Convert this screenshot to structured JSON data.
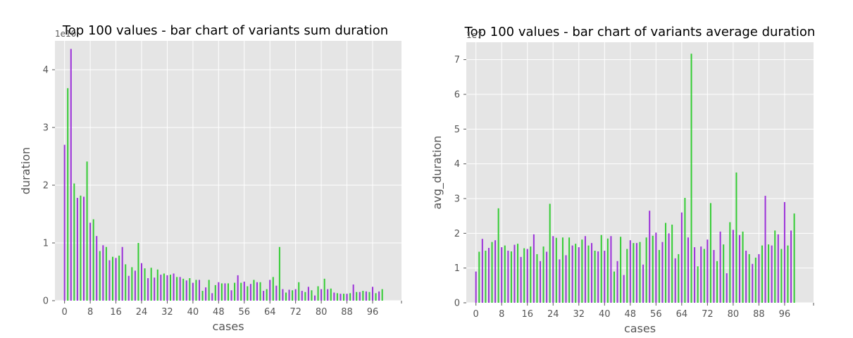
{
  "colors": {
    "background": "#ffffff",
    "plot_background": "#e5e5e5",
    "grid": "#ffffff",
    "bar_purple": "#9b30d9",
    "bar_green": "#33cc33",
    "text": "#555555"
  },
  "chart_data": [
    {
      "type": "bar",
      "title": "Top 100 values - bar chart of variants sum duration",
      "xlabel": "cases",
      "ylabel": "duration",
      "offset_text": "1e10",
      "grid": true,
      "xlim": [
        -3,
        105
      ],
      "ylim": [
        0,
        4.5
      ],
      "xticks": [
        0,
        8,
        16,
        24,
        32,
        40,
        48,
        56,
        64,
        72,
        80,
        88,
        96
      ],
      "yticks": [
        0,
        1,
        2,
        3,
        4
      ],
      "bar_colors_alternate": [
        "#9b30d9",
        "#33cc33"
      ],
      "x": [
        0,
        1,
        2,
        3,
        4,
        5,
        6,
        7,
        8,
        9,
        10,
        11,
        12,
        13,
        14,
        15,
        16,
        17,
        18,
        19,
        20,
        21,
        22,
        23,
        24,
        25,
        26,
        27,
        28,
        29,
        30,
        31,
        32,
        33,
        34,
        35,
        36,
        37,
        38,
        39,
        40,
        41,
        42,
        43,
        44,
        45,
        46,
        47,
        48,
        49,
        50,
        51,
        52,
        53,
        54,
        55,
        56,
        57,
        58,
        59,
        60,
        61,
        62,
        63,
        64,
        65,
        66,
        67,
        68,
        69,
        70,
        71,
        72,
        73,
        74,
        75,
        76,
        77,
        78,
        79,
        80,
        81,
        82,
        83,
        84,
        85,
        86,
        87,
        88,
        89,
        90,
        91,
        92,
        93,
        94,
        95,
        96,
        97,
        98,
        99
      ],
      "values": [
        2.7,
        3.68,
        4.36,
        2.03,
        1.78,
        1.82,
        1.8,
        2.41,
        1.35,
        1.41,
        1.12,
        0.86,
        0.96,
        0.93,
        0.7,
        0.76,
        0.74,
        0.78,
        0.93,
        0.63,
        0.43,
        0.58,
        0.52,
        1.0,
        0.65,
        0.56,
        0.39,
        0.57,
        0.4,
        0.54,
        0.45,
        0.47,
        0.44,
        0.45,
        0.47,
        0.41,
        0.41,
        0.38,
        0.35,
        0.39,
        0.31,
        0.36,
        0.36,
        0.17,
        0.23,
        0.36,
        0.13,
        0.27,
        0.32,
        0.3,
        0.3,
        0.3,
        0.18,
        0.31,
        0.44,
        0.31,
        0.33,
        0.25,
        0.29,
        0.36,
        0.32,
        0.32,
        0.17,
        0.2,
        0.36,
        0.41,
        0.26,
        0.93,
        0.2,
        0.14,
        0.19,
        0.18,
        0.2,
        0.32,
        0.17,
        0.15,
        0.24,
        0.18,
        0.09,
        0.25,
        0.2,
        0.38,
        0.2,
        0.21,
        0.14,
        0.13,
        0.12,
        0.12,
        0.12,
        0.13,
        0.28,
        0.15,
        0.15,
        0.17,
        0.16,
        0.15,
        0.24,
        0.13,
        0.16,
        0.2
      ]
    },
    {
      "type": "bar",
      "title": "Top 100 values - bar chart of variants average duration",
      "xlabel": "cases",
      "ylabel": "avg_duration",
      "offset_text": "1e7",
      "grid": true,
      "xlim": [
        -3,
        105
      ],
      "ylim": [
        0,
        7.5
      ],
      "xticks": [
        0,
        8,
        16,
        24,
        32,
        40,
        48,
        56,
        64,
        72,
        80,
        88,
        96
      ],
      "yticks": [
        0,
        1,
        2,
        3,
        4,
        5,
        6,
        7
      ],
      "bar_colors_alternate": [
        "#9b30d9",
        "#33cc33"
      ],
      "x": [
        0,
        1,
        2,
        3,
        4,
        5,
        6,
        7,
        8,
        9,
        10,
        11,
        12,
        13,
        14,
        15,
        16,
        17,
        18,
        19,
        20,
        21,
        22,
        23,
        24,
        25,
        26,
        27,
        28,
        29,
        30,
        31,
        32,
        33,
        34,
        35,
        36,
        37,
        38,
        39,
        40,
        41,
        42,
        43,
        44,
        45,
        46,
        47,
        48,
        49,
        50,
        51,
        52,
        53,
        54,
        55,
        56,
        57,
        58,
        59,
        60,
        61,
        62,
        63,
        64,
        65,
        66,
        67,
        68,
        69,
        70,
        71,
        72,
        73,
        74,
        75,
        76,
        77,
        78,
        79,
        80,
        81,
        82,
        83,
        84,
        85,
        86,
        87,
        88,
        89,
        90,
        91,
        92,
        93,
        94,
        95,
        96,
        97,
        98,
        99
      ],
      "values": [
        0.9,
        1.47,
        1.84,
        1.5,
        1.58,
        1.75,
        1.8,
        2.72,
        1.6,
        1.65,
        1.5,
        1.48,
        1.67,
        1.7,
        1.32,
        1.57,
        1.55,
        1.62,
        1.97,
        1.4,
        1.2,
        1.62,
        1.47,
        2.85,
        1.92,
        1.87,
        1.25,
        1.88,
        1.37,
        1.88,
        1.65,
        1.7,
        1.6,
        1.82,
        1.92,
        1.65,
        1.72,
        1.5,
        1.48,
        1.95,
        1.5,
        1.85,
        1.92,
        0.9,
        1.2,
        1.9,
        0.8,
        1.55,
        1.8,
        1.72,
        1.72,
        1.75,
        1.1,
        1.88,
        2.65,
        1.93,
        2.02,
        1.52,
        1.75,
        2.3,
        2.0,
        2.25,
        1.28,
        1.4,
        2.6,
        3.02,
        1.88,
        7.17,
        1.6,
        1.05,
        1.62,
        1.55,
        1.82,
        2.87,
        1.52,
        1.2,
        2.05,
        1.68,
        0.85,
        2.32,
        2.1,
        3.75,
        1.95,
        2.05,
        1.5,
        1.4,
        1.12,
        1.3,
        1.4,
        1.65,
        3.08,
        1.68,
        1.65,
        2.08,
        1.97,
        1.55,
        2.9,
        1.65,
        2.08,
        2.57
      ]
    }
  ]
}
